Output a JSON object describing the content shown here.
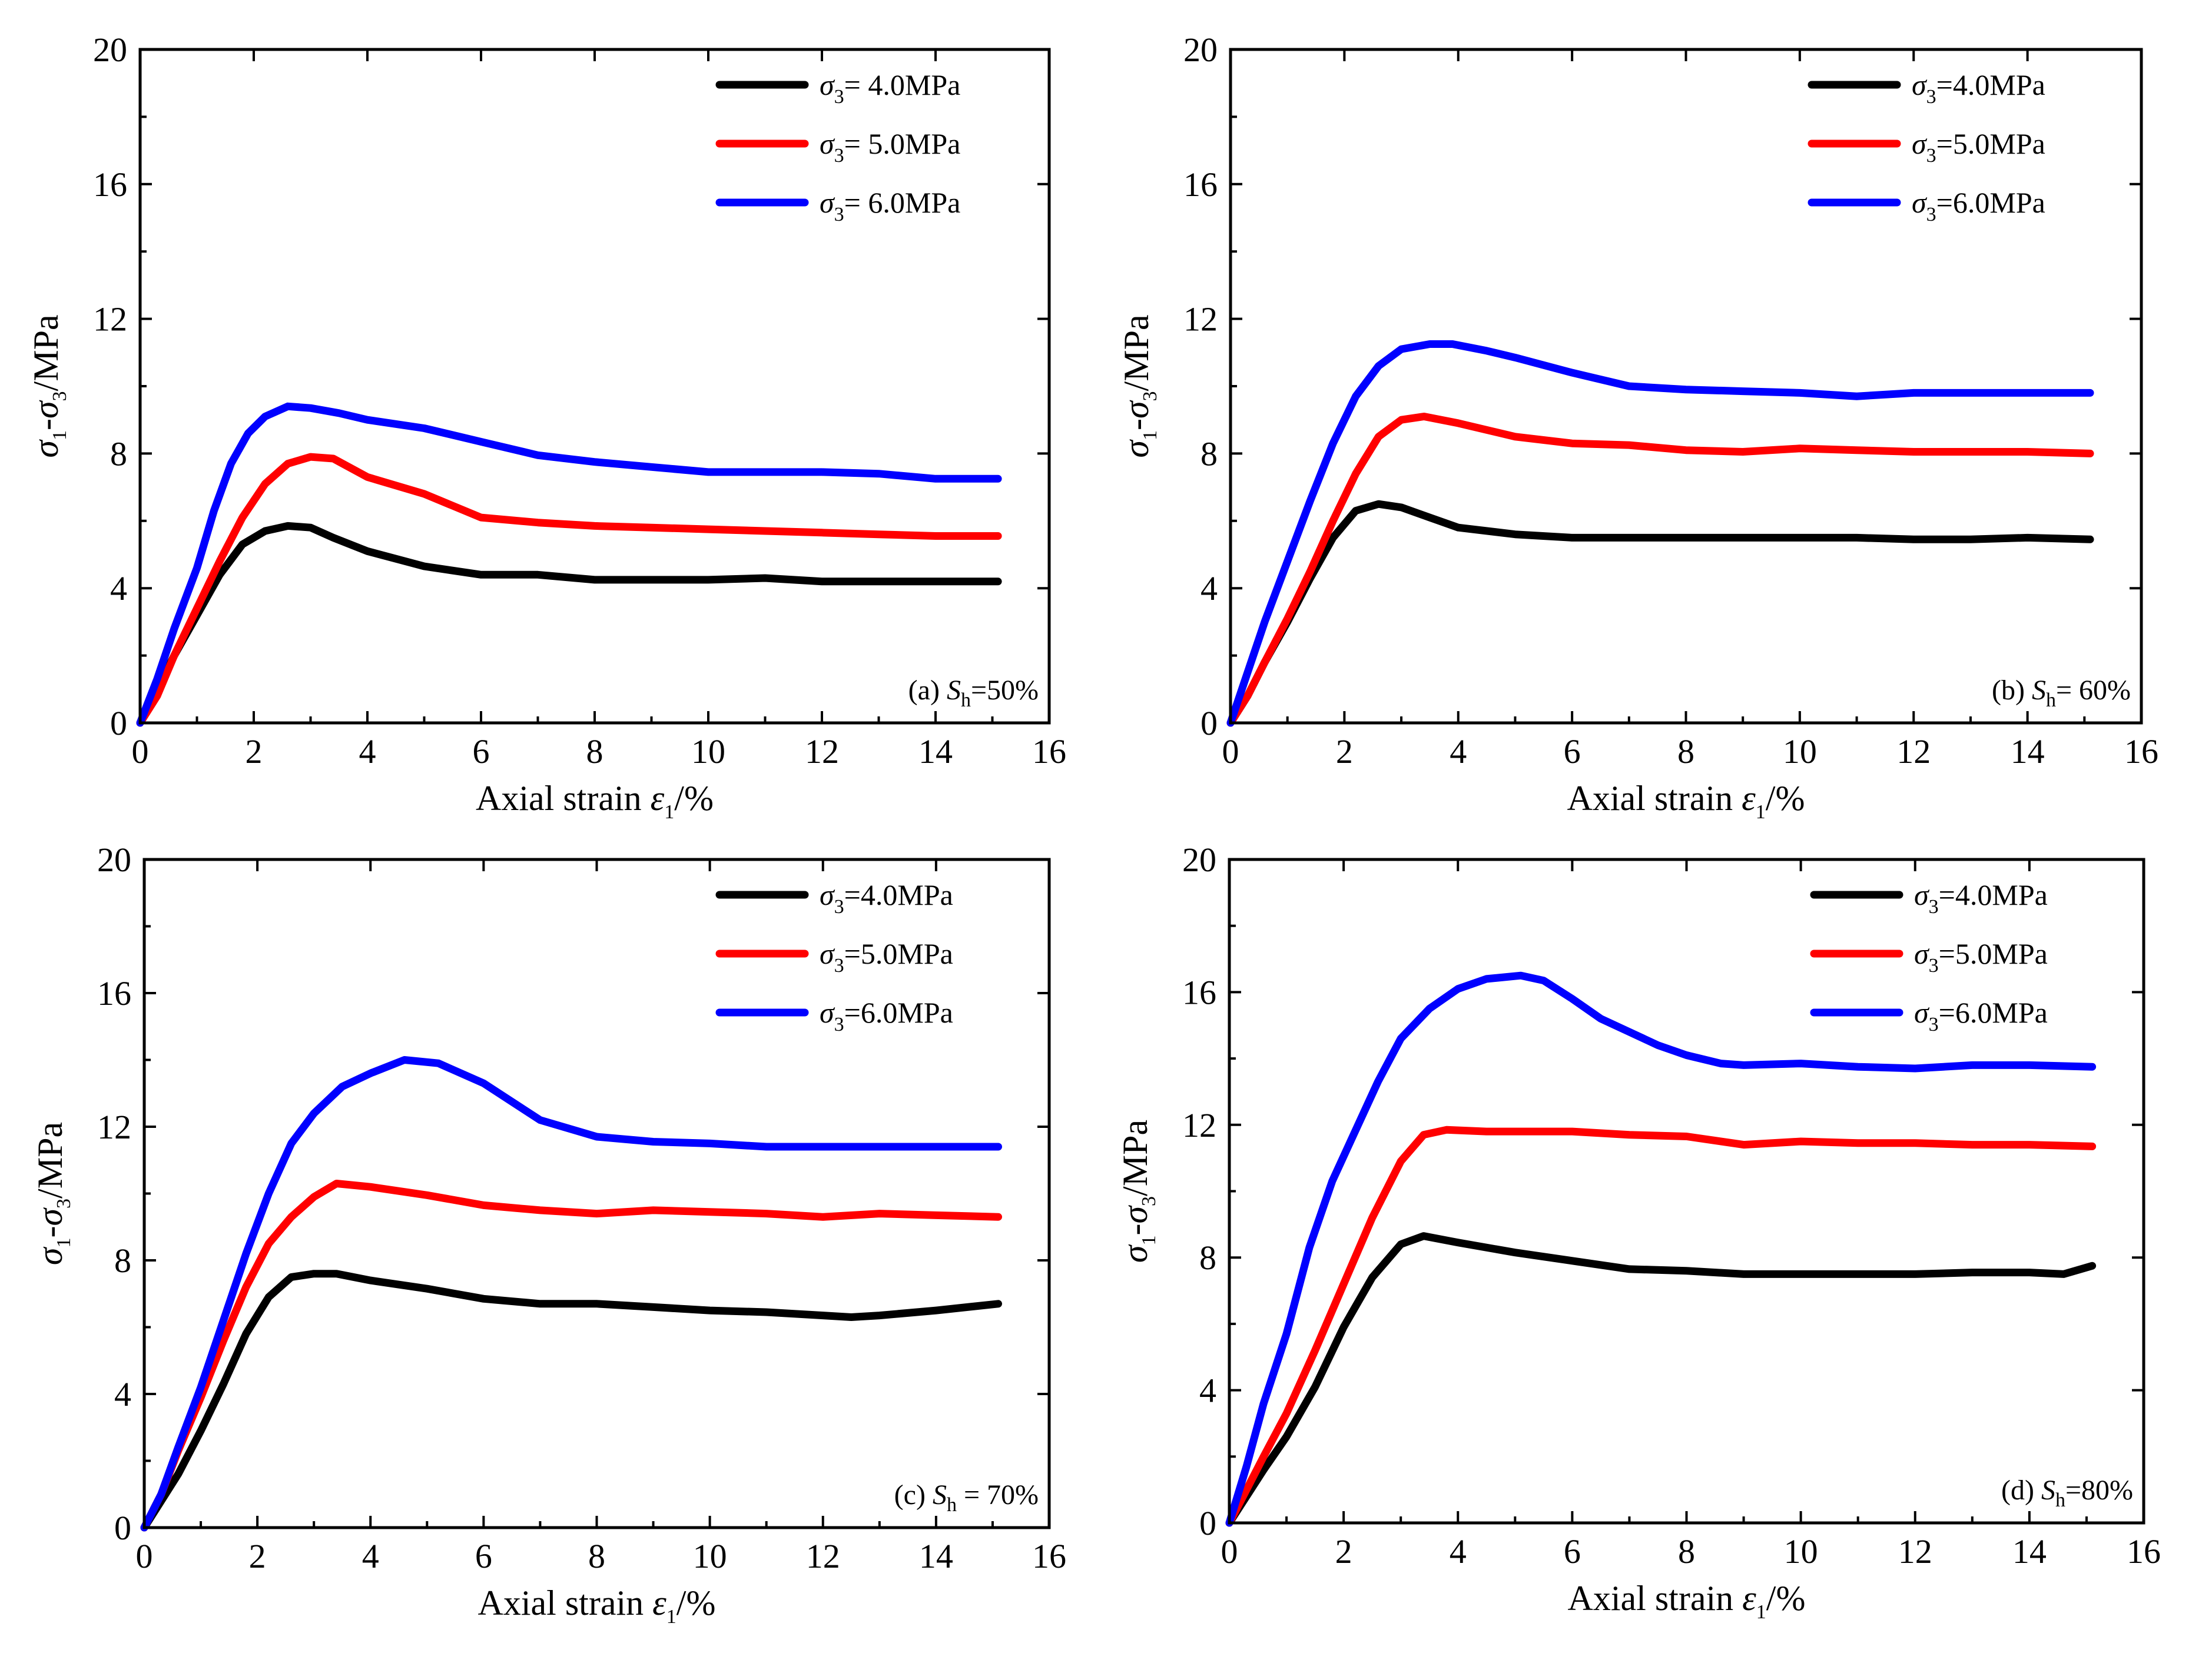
{
  "figure": {
    "panels": [
      {
        "id": "a",
        "label_prefix": "(a) ",
        "label_var": "S",
        "label_sub": "h",
        "label_suffix": "=50%",
        "legend": [
          {
            "sym": "σ",
            "sub": "3",
            "text": "= 4.0MPa",
            "color": "#000000"
          },
          {
            "sym": "σ",
            "sub": "3",
            "text": "= 5.0MPa",
            "color": "#ff0000"
          },
          {
            "sym": "σ",
            "sub": "3",
            "text": "= 6.0MPa",
            "color": "#0000ff"
          }
        ]
      },
      {
        "id": "b",
        "label_prefix": "(b) ",
        "label_var": "S",
        "label_sub": "h",
        "label_suffix": "= 60%",
        "legend": [
          {
            "sym": "σ",
            "sub": "3",
            "text": "=4.0MPa",
            "color": "#000000"
          },
          {
            "sym": "σ",
            "sub": "3",
            "text": "=5.0MPa",
            "color": "#ff0000"
          },
          {
            "sym": "σ",
            "sub": "3",
            "text": "=6.0MPa",
            "color": "#0000ff"
          }
        ]
      },
      {
        "id": "c",
        "label_prefix": "(c) ",
        "label_var": "S",
        "label_sub": "h",
        "label_suffix": " = 70%",
        "legend": [
          {
            "sym": "σ",
            "sub": "3",
            "text": "=4.0MPa",
            "color": "#000000"
          },
          {
            "sym": "σ",
            "sub": "3",
            "text": "=5.0MPa",
            "color": "#ff0000"
          },
          {
            "sym": "σ",
            "sub": "3",
            "text": "=6.0MPa",
            "color": "#0000ff"
          }
        ]
      },
      {
        "id": "d",
        "label_prefix": "(d) ",
        "label_var": "S",
        "label_sub": "h",
        "label_suffix": "=80%",
        "legend": [
          {
            "sym": "σ",
            "sub": "3",
            "text": "=4.0MPa",
            "color": "#000000"
          },
          {
            "sym": "σ",
            "sub": "3",
            "text": "=5.0MPa",
            "color": "#ff0000"
          },
          {
            "sym": "σ",
            "sub": "3",
            "text": "=6.0MPa",
            "color": "#0000ff"
          }
        ]
      }
    ],
    "xlabel": {
      "text": "Axial strain ",
      "sym": "ε",
      "sub": "1",
      "unit": "/%"
    },
    "ylabel": {
      "sym1": "σ",
      "sub1": "1",
      "dash": "-",
      "sym2": "σ",
      "sub2": "3",
      "unit": "/MPa"
    }
  },
  "chart_data": [
    {
      "type": "line",
      "panel": "a",
      "xlim": [
        0,
        16
      ],
      "ylim": [
        0,
        20
      ],
      "xticks": [
        0,
        2,
        4,
        6,
        8,
        10,
        12,
        14,
        16
      ],
      "yticks": [
        0,
        4,
        8,
        12,
        16,
        20
      ],
      "grid": false,
      "legend_position": "top-right",
      "series": [
        {
          "name": "σ3= 4.0MPa",
          "color": "#000000",
          "x": [
            0,
            0.3,
            0.6,
            1.0,
            1.4,
            1.8,
            2.2,
            2.6,
            3.0,
            3.4,
            4.0,
            5.0,
            6.0,
            7.0,
            8.0,
            9.0,
            10.0,
            11.0,
            12.0,
            13.0,
            14.0,
            15.1
          ],
          "y": [
            0,
            1.0,
            2.0,
            3.2,
            4.4,
            5.3,
            5.7,
            5.85,
            5.8,
            5.5,
            5.1,
            4.65,
            4.4,
            4.4,
            4.25,
            4.25,
            4.25,
            4.3,
            4.2,
            4.2,
            4.2,
            4.2
          ]
        },
        {
          "name": "σ3= 5.0MPa",
          "color": "#ff0000",
          "x": [
            0,
            0.3,
            0.6,
            1.0,
            1.4,
            1.8,
            2.2,
            2.6,
            3.0,
            3.4,
            4.0,
            5.0,
            6.0,
            7.0,
            8.0,
            9.0,
            10.0,
            11.0,
            12.0,
            13.0,
            14.0,
            15.1
          ],
          "y": [
            0,
            0.8,
            2.0,
            3.4,
            4.8,
            6.1,
            7.1,
            7.7,
            7.9,
            7.85,
            7.3,
            6.8,
            6.1,
            5.95,
            5.85,
            5.8,
            5.75,
            5.7,
            5.65,
            5.6,
            5.55,
            5.55
          ]
        },
        {
          "name": "σ3= 6.0MPa",
          "color": "#0000ff",
          "x": [
            0,
            0.3,
            0.6,
            1.0,
            1.3,
            1.6,
            1.9,
            2.2,
            2.6,
            3.0,
            3.5,
            4.0,
            5.0,
            6.0,
            7.0,
            8.0,
            9.0,
            10.0,
            11.0,
            12.0,
            13.0,
            14.0,
            15.1
          ],
          "y": [
            0,
            1.3,
            2.8,
            4.6,
            6.3,
            7.7,
            8.6,
            9.1,
            9.4,
            9.35,
            9.2,
            9.0,
            8.75,
            8.35,
            7.95,
            7.75,
            7.6,
            7.45,
            7.45,
            7.45,
            7.4,
            7.25,
            7.25
          ]
        }
      ]
    },
    {
      "type": "line",
      "panel": "b",
      "xlim": [
        0,
        16
      ],
      "ylim": [
        0,
        20
      ],
      "xticks": [
        0,
        2,
        4,
        6,
        8,
        10,
        12,
        14,
        16
      ],
      "yticks": [
        0,
        4,
        8,
        12,
        16,
        20
      ],
      "grid": false,
      "legend_position": "top-right",
      "series": [
        {
          "name": "σ3=4.0MPa",
          "color": "#000000",
          "x": [
            0,
            0.3,
            0.6,
            1.0,
            1.4,
            1.8,
            2.2,
            2.6,
            3.0,
            3.5,
            4.0,
            5.0,
            6.0,
            7.0,
            8.0,
            9.0,
            10.0,
            11.0,
            12.0,
            13.0,
            14.0,
            15.1
          ],
          "y": [
            0,
            0.8,
            1.8,
            3.0,
            4.3,
            5.5,
            6.3,
            6.5,
            6.4,
            6.1,
            5.8,
            5.6,
            5.5,
            5.5,
            5.5,
            5.5,
            5.5,
            5.5,
            5.45,
            5.45,
            5.5,
            5.45
          ]
        },
        {
          "name": "σ3=5.0MPa",
          "color": "#ff0000",
          "x": [
            0,
            0.3,
            0.6,
            1.0,
            1.4,
            1.8,
            2.2,
            2.6,
            3.0,
            3.4,
            4.0,
            5.0,
            6.0,
            7.0,
            8.0,
            9.0,
            10.0,
            11.0,
            12.0,
            13.0,
            14.0,
            15.1
          ],
          "y": [
            0,
            0.8,
            1.8,
            3.1,
            4.5,
            6.0,
            7.4,
            8.5,
            9.0,
            9.1,
            8.9,
            8.5,
            8.3,
            8.25,
            8.1,
            8.05,
            8.15,
            8.1,
            8.05,
            8.05,
            8.05,
            8.0
          ]
        },
        {
          "name": "σ3=6.0MPa",
          "color": "#0000ff",
          "x": [
            0,
            0.3,
            0.6,
            1.0,
            1.4,
            1.8,
            2.2,
            2.6,
            3.0,
            3.5,
            3.9,
            4.5,
            5.0,
            6.0,
            7.0,
            8.0,
            9.0,
            10.0,
            11.0,
            12.0,
            13.0,
            14.0,
            15.1
          ],
          "y": [
            0,
            1.5,
            3.0,
            4.8,
            6.6,
            8.3,
            9.7,
            10.6,
            11.1,
            11.25,
            11.25,
            11.05,
            10.85,
            10.4,
            10.0,
            9.9,
            9.85,
            9.8,
            9.7,
            9.8,
            9.8,
            9.8,
            9.8
          ]
        }
      ]
    },
    {
      "type": "line",
      "panel": "c",
      "xlim": [
        0,
        16
      ],
      "ylim": [
        0,
        20
      ],
      "xticks": [
        0,
        2,
        4,
        6,
        8,
        10,
        12,
        14,
        16
      ],
      "yticks": [
        0,
        4,
        8,
        12,
        16,
        20
      ],
      "grid": false,
      "legend_position": "top-right",
      "series": [
        {
          "name": "σ3=4.0MPa",
          "color": "#000000",
          "x": [
            0,
            0.3,
            0.6,
            1.0,
            1.4,
            1.8,
            2.2,
            2.6,
            3.0,
            3.4,
            4.0,
            5.0,
            6.0,
            7.0,
            8.0,
            9.0,
            10.0,
            11.0,
            12.0,
            12.5,
            13.0,
            14.0,
            15.1
          ],
          "y": [
            0,
            0.8,
            1.6,
            2.9,
            4.3,
            5.8,
            6.9,
            7.5,
            7.6,
            7.6,
            7.4,
            7.15,
            6.85,
            6.7,
            6.7,
            6.6,
            6.5,
            6.45,
            6.35,
            6.3,
            6.35,
            6.5,
            6.7
          ]
        },
        {
          "name": "σ3=5.0MPa",
          "color": "#ff0000",
          "x": [
            0,
            0.3,
            0.6,
            1.0,
            1.4,
            1.8,
            2.2,
            2.6,
            3.0,
            3.4,
            4.0,
            5.0,
            6.0,
            7.0,
            8.0,
            9.0,
            10.0,
            11.0,
            12.0,
            13.0,
            14.0,
            15.1
          ],
          "y": [
            0,
            1.0,
            2.3,
            3.9,
            5.6,
            7.2,
            8.5,
            9.3,
            9.9,
            10.3,
            10.2,
            9.95,
            9.65,
            9.5,
            9.4,
            9.5,
            9.45,
            9.4,
            9.3,
            9.4,
            9.35,
            9.3
          ]
        },
        {
          "name": "σ3=6.0MPa",
          "color": "#0000ff",
          "x": [
            0,
            0.3,
            0.6,
            1.0,
            1.4,
            1.8,
            2.2,
            2.6,
            3.0,
            3.5,
            4.0,
            4.6,
            5.2,
            6.0,
            7.0,
            8.0,
            9.0,
            10.0,
            11.0,
            12.0,
            13.0,
            14.0,
            15.1
          ],
          "y": [
            0,
            1.0,
            2.4,
            4.2,
            6.2,
            8.2,
            10.0,
            11.5,
            12.4,
            13.2,
            13.6,
            14.0,
            13.9,
            13.3,
            12.2,
            11.7,
            11.55,
            11.5,
            11.4,
            11.4,
            11.4,
            11.4,
            11.4
          ]
        }
      ]
    },
    {
      "type": "line",
      "panel": "d",
      "xlim": [
        0,
        16
      ],
      "ylim": [
        0,
        20
      ],
      "xticks": [
        0,
        2,
        4,
        6,
        8,
        10,
        12,
        14,
        16
      ],
      "yticks": [
        0,
        4,
        8,
        12,
        16,
        20
      ],
      "grid": false,
      "legend_position": "top-right",
      "series": [
        {
          "name": "σ3=4.0MPa",
          "color": "#000000",
          "x": [
            0,
            0.3,
            0.6,
            1.0,
            1.5,
            2.0,
            2.5,
            3.0,
            3.4,
            4.0,
            5.0,
            6.0,
            7.0,
            8.0,
            9.0,
            10.0,
            11.0,
            12.0,
            13.0,
            14.0,
            14.6,
            15.1
          ],
          "y": [
            0,
            0.8,
            1.6,
            2.6,
            4.1,
            5.9,
            7.4,
            8.4,
            8.65,
            8.45,
            8.15,
            7.9,
            7.65,
            7.6,
            7.5,
            7.5,
            7.5,
            7.5,
            7.55,
            7.55,
            7.5,
            7.75
          ]
        },
        {
          "name": "σ3=5.0MPa",
          "color": "#ff0000",
          "x": [
            0,
            0.3,
            0.6,
            1.0,
            1.5,
            2.0,
            2.5,
            3.0,
            3.4,
            3.8,
            4.5,
            5.0,
            6.0,
            7.0,
            8.0,
            9.0,
            10.0,
            11.0,
            12.0,
            13.0,
            14.0,
            15.1
          ],
          "y": [
            0,
            1.0,
            2.0,
            3.3,
            5.2,
            7.2,
            9.2,
            10.9,
            11.7,
            11.85,
            11.8,
            11.8,
            11.8,
            11.7,
            11.65,
            11.4,
            11.5,
            11.45,
            11.45,
            11.4,
            11.4,
            11.35
          ]
        },
        {
          "name": "σ3=6.0MPa",
          "color": "#0000ff",
          "x": [
            0,
            0.3,
            0.6,
            1.0,
            1.4,
            1.8,
            2.2,
            2.6,
            3.0,
            3.5,
            4.0,
            4.5,
            5.1,
            5.5,
            6.0,
            6.5,
            7.0,
            7.5,
            8.0,
            8.6,
            9.0,
            10.0,
            11.0,
            12.0,
            13.0,
            14.0,
            15.1
          ],
          "y": [
            0,
            1.7,
            3.6,
            5.7,
            8.3,
            10.3,
            11.8,
            13.3,
            14.6,
            15.5,
            16.1,
            16.4,
            16.5,
            16.35,
            15.8,
            15.2,
            14.8,
            14.4,
            14.1,
            13.85,
            13.8,
            13.85,
            13.75,
            13.7,
            13.8,
            13.8,
            13.75
          ]
        }
      ]
    }
  ]
}
